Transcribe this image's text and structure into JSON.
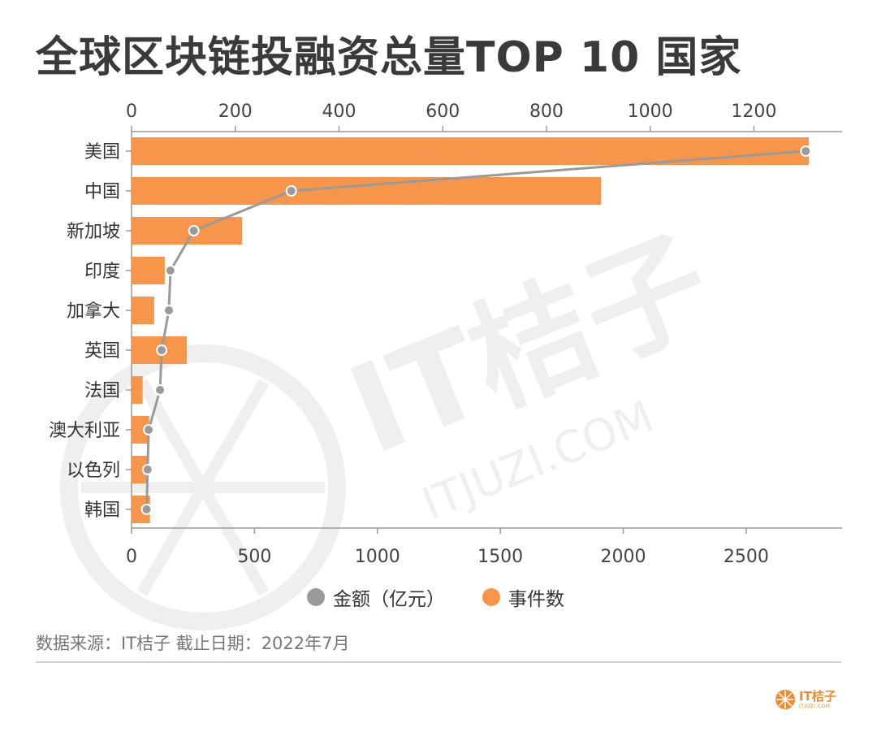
{
  "title": "全球区块链投融资总量TOP 10 国家",
  "legend": {
    "amount_label": "金额（亿元）",
    "count_label": "事件数"
  },
  "source": "数据来源：IT桔子 截止日期：2022年7月",
  "watermark": {
    "main": "IT桔子",
    "sub": "ITJUZI.COM"
  },
  "logo": {
    "name": "IT桔子",
    "sub": "ITJUZI.COM"
  },
  "colors": {
    "bar": "#f7964a",
    "line": "#9a9a9a",
    "axis": "#999999",
    "watermark": "#efefef"
  },
  "chart_data": {
    "type": "bar",
    "orientation": "horizontal",
    "categories": [
      "美国",
      "中国",
      "新加坡",
      "印度",
      "加拿大",
      "英国",
      "法国",
      "澳大利亚",
      "以色列",
      "韩国"
    ],
    "series": [
      {
        "name": "事件数",
        "type": "bar",
        "axis": "bottom",
        "values": [
          2755,
          1910,
          450,
          135,
          92,
          225,
          45,
          72,
          65,
          75
        ]
      },
      {
        "name": "金额（亿元）",
        "type": "line",
        "axis": "top",
        "values": [
          1300,
          308,
          120,
          75,
          72,
          58,
          55,
          33,
          31,
          29
        ]
      }
    ],
    "top_axis": {
      "range": [
        0,
        1370
      ],
      "ticks": [
        0,
        200,
        400,
        600,
        800,
        1000,
        1200
      ]
    },
    "bottom_axis": {
      "range": [
        0,
        2890
      ],
      "ticks": [
        0,
        500,
        1000,
        1500,
        2000,
        2500
      ]
    },
    "legend_position": "bottom"
  }
}
